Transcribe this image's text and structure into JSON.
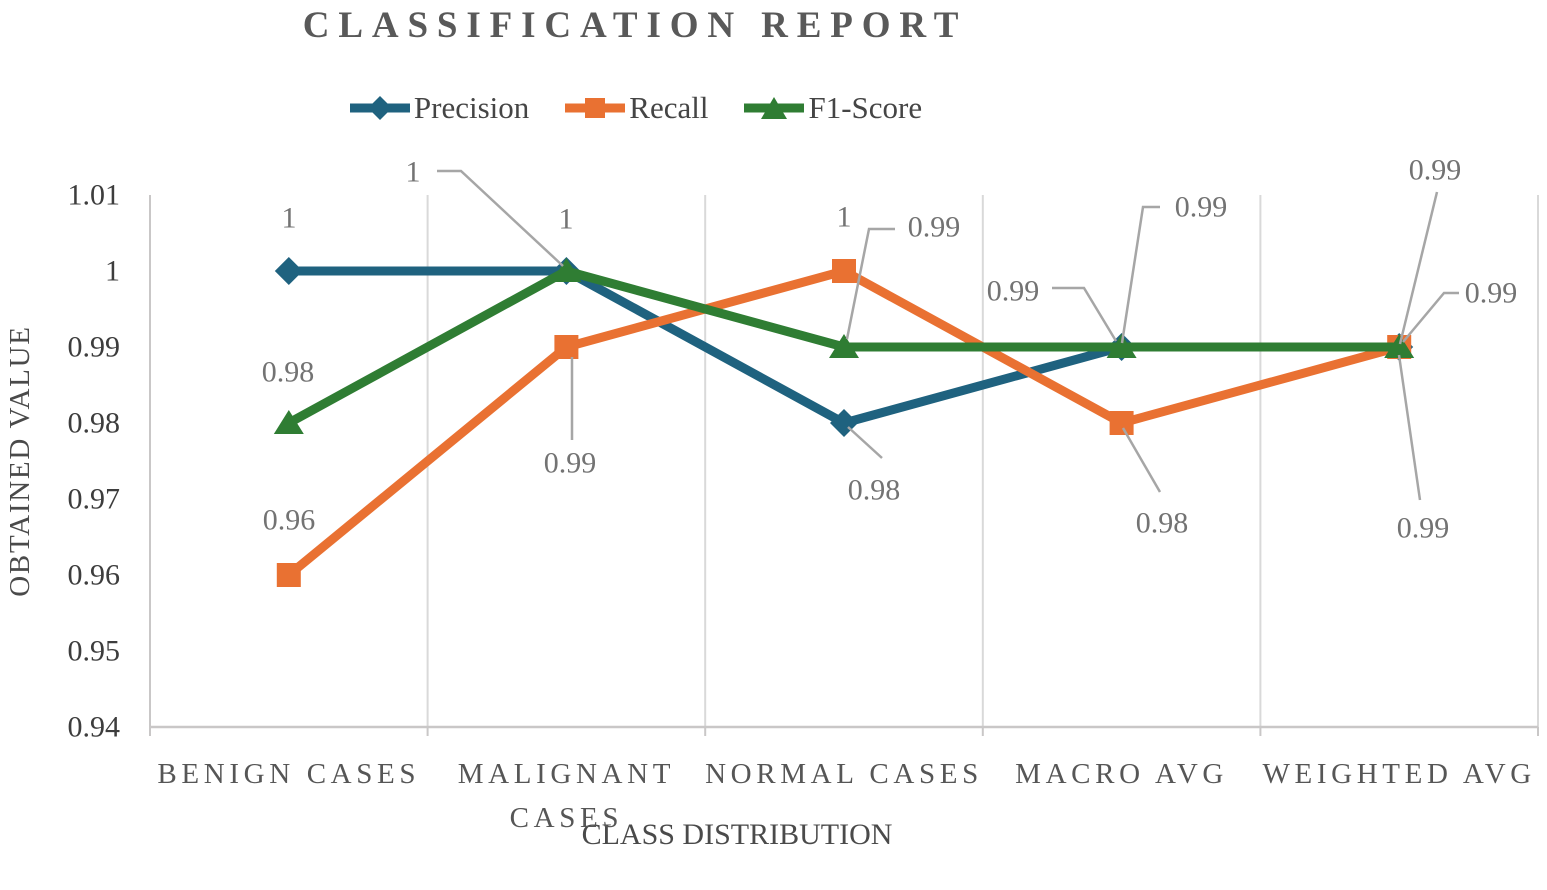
{
  "title": "CLASSIFICATION REPORT",
  "axes": {
    "y_title": "OBTAINED VALUE",
    "x_title": "CLASS DISTRIBUTION",
    "y_tick_labels": [
      "1.01",
      "1",
      "0.99",
      "0.98",
      "0.97",
      "0.96",
      "0.95",
      "0.94"
    ]
  },
  "legend": {
    "items": [
      "Precision",
      "Recall",
      "F1-Score"
    ]
  },
  "chart_data": {
    "type": "line",
    "title": "CLASSIFICATION REPORT",
    "xlabel": "CLASS DISTRIBUTION",
    "ylabel": "OBTAINED VALUE",
    "categories": [
      "BENIGN CASES",
      "MALIGNANT CASES",
      "NORMAL CASES",
      "MACRO AVG",
      "WEIGHTED AVG"
    ],
    "ylim": [
      0.94,
      1.01
    ],
    "y_ticks": [
      1.01,
      1.0,
      0.99,
      0.98,
      0.97,
      0.96,
      0.95,
      0.94
    ],
    "grid": "vertical-only",
    "legend_position": "top",
    "series": [
      {
        "name": "Precision",
        "marker": "diamond",
        "color": "#1F627F",
        "values": [
          1,
          1,
          0.98,
          0.99,
          0.99
        ],
        "point_labels": [
          "1",
          "1",
          "0.98",
          "0.99",
          "0.99"
        ]
      },
      {
        "name": "Recall",
        "marker": "square",
        "color": "#E97132",
        "values": [
          0.96,
          0.99,
          1,
          0.98,
          0.99
        ],
        "point_labels": [
          "0.96",
          "0.99",
          "1",
          "0.98",
          "0.99"
        ]
      },
      {
        "name": "F1-Score",
        "marker": "triangle",
        "color": "#2F7D33",
        "values": [
          0.98,
          1,
          0.99,
          0.99,
          0.99
        ],
        "point_labels": [
          "0.98",
          "1",
          "0.99",
          "0.99",
          "0.99"
        ]
      }
    ]
  },
  "colors": {
    "title": "#595959",
    "tick_label": "#3D3D3D",
    "data_label": "#737373",
    "grid": "#D9D9D9",
    "axis": "#C9C7C7",
    "category_label": "#565656",
    "axis_title": "#4A4A4A",
    "legend_text": "#454545",
    "leader_line": "#A6A6A6"
  }
}
